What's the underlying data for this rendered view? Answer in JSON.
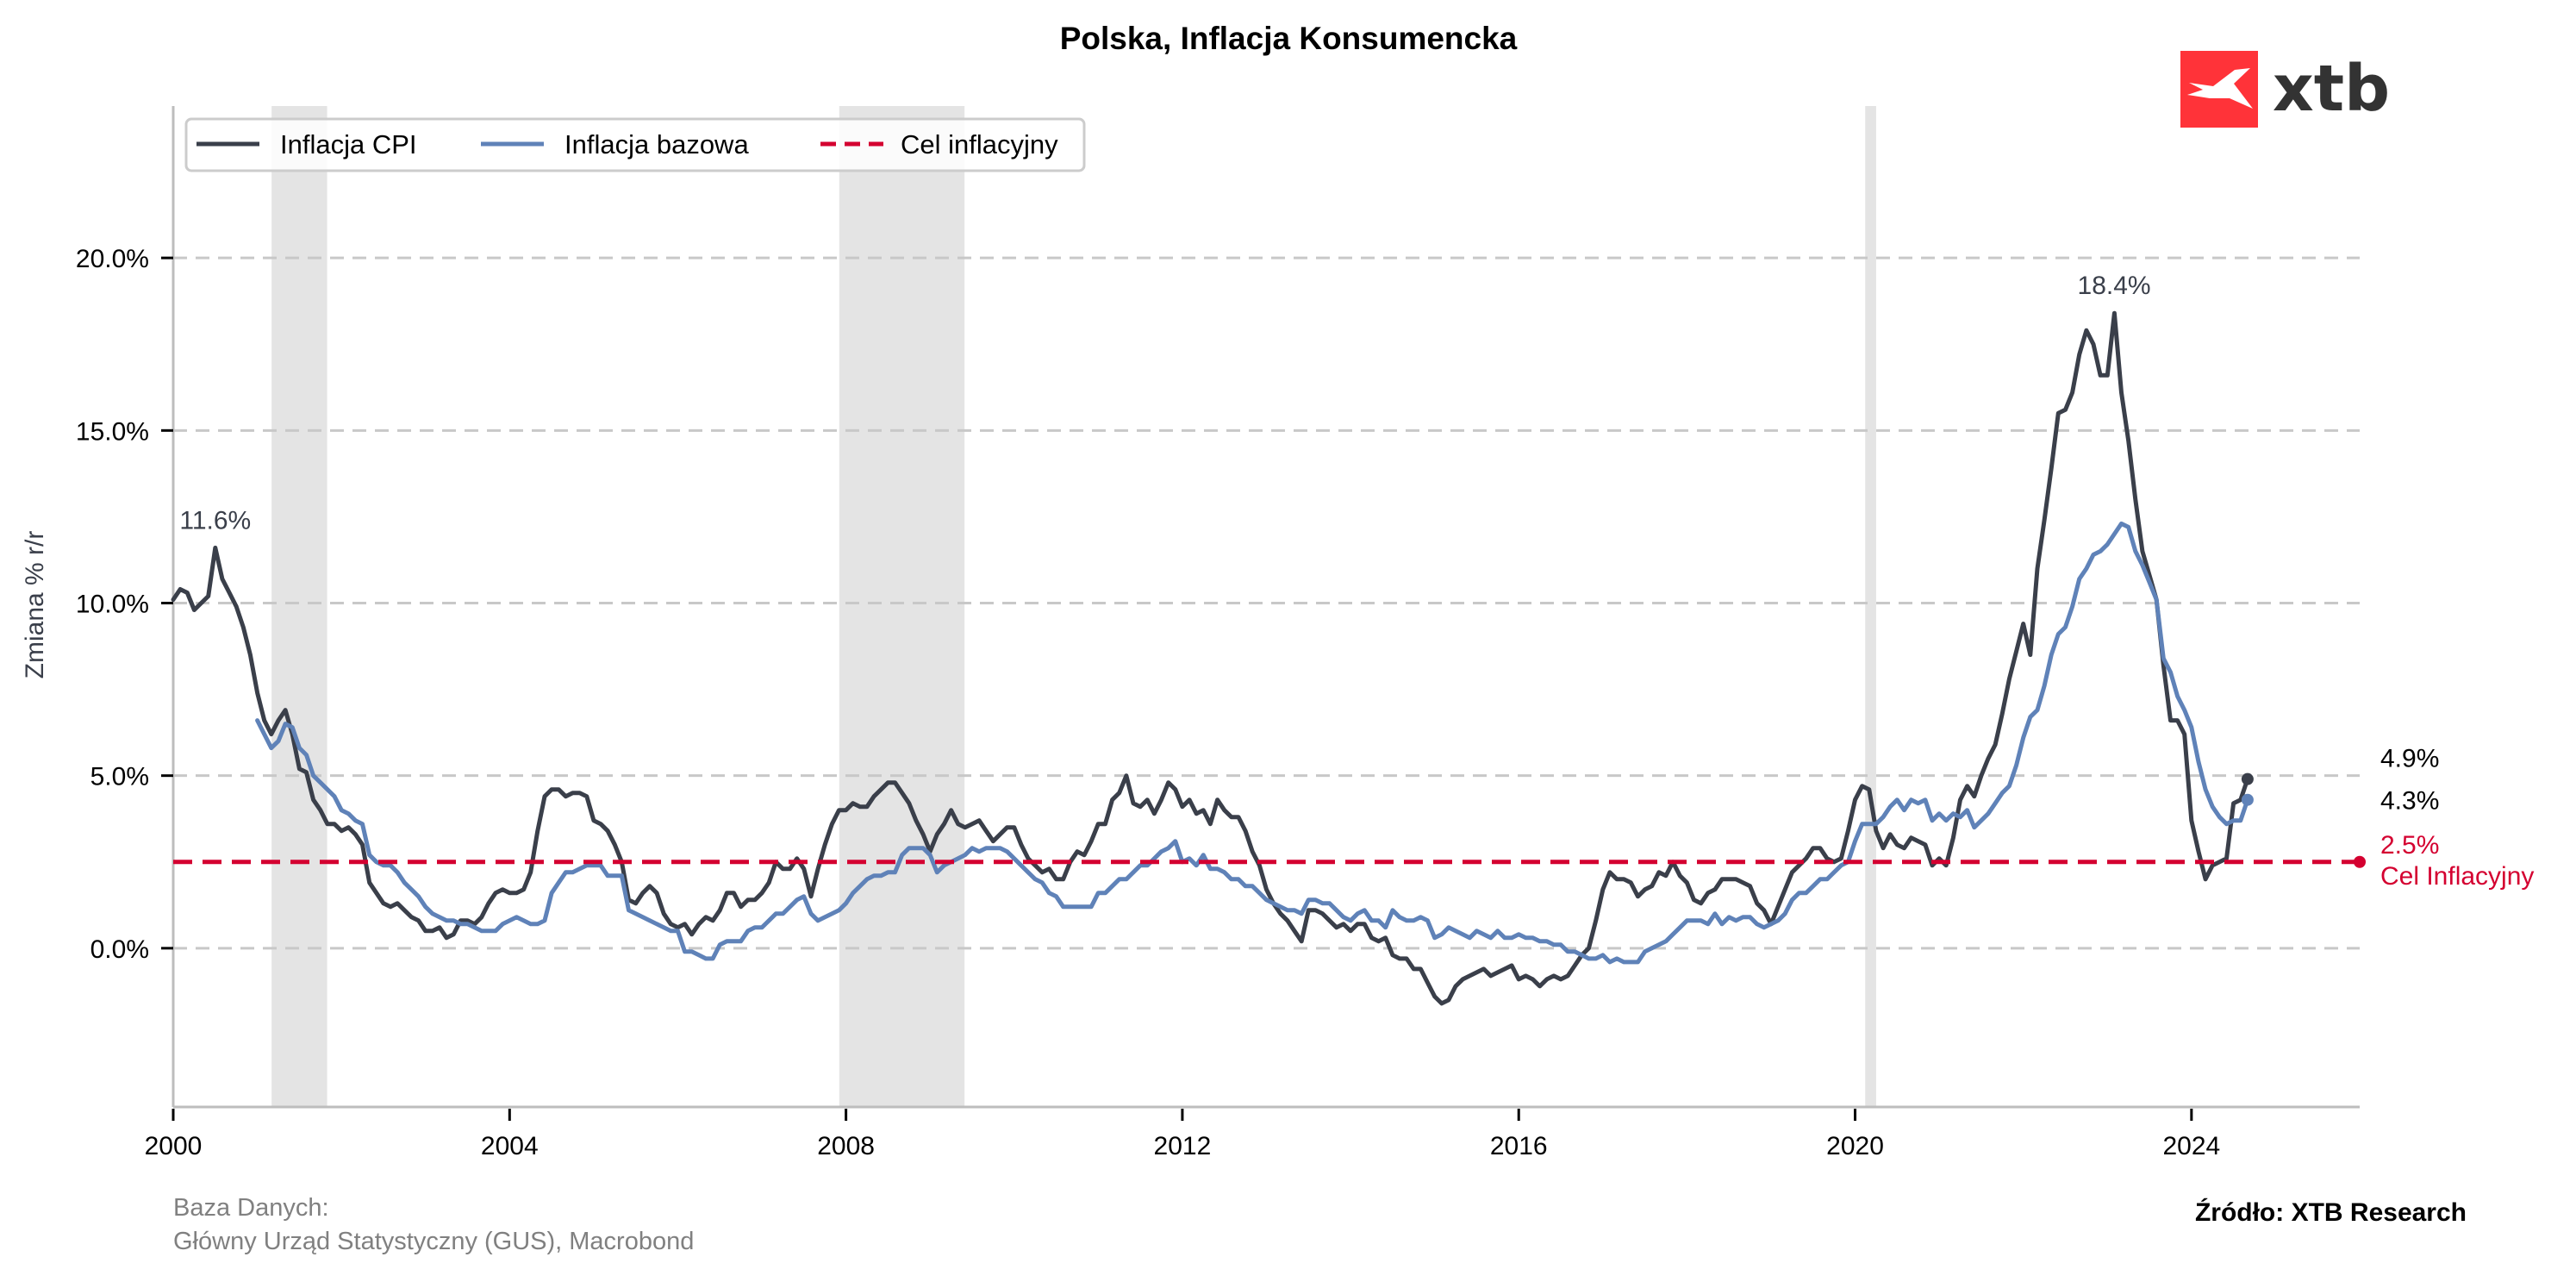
{
  "chart_data": {
    "type": "line",
    "title": "Polska, Inflacja Konsumencka",
    "xlabel": "",
    "ylabel": "Zmiana % r/r",
    "xlim": [
      2000,
      2026
    ],
    "ylim": [
      -4.6,
      24.4
    ],
    "x_ticks": [
      2000,
      2004,
      2008,
      2012,
      2016,
      2020,
      2024
    ],
    "x_tick_labels": [
      "2000",
      "2004",
      "2008",
      "2012",
      "2016",
      "2020",
      "2024"
    ],
    "y_ticks": [
      0,
      5,
      10,
      15,
      20
    ],
    "y_tick_labels": [
      "0.0%",
      "5.0%",
      "10.0%",
      "15.0%",
      "20.0%"
    ],
    "grid": "horizontal dashed",
    "legend_position": "top-left",
    "frequency": "monthly",
    "recession_bands": [
      {
        "start": 2001.17,
        "end": 2001.83
      },
      {
        "start": 2007.92,
        "end": 2009.41
      },
      {
        "start": 2020.12,
        "end": 2020.25
      }
    ],
    "series": [
      {
        "name": "Inflacja CPI",
        "color": "#3a3f4a",
        "start": "2000-01",
        "values": [
          10.1,
          10.4,
          10.3,
          9.8,
          10.0,
          10.2,
          11.6,
          10.7,
          10.3,
          9.9,
          9.3,
          8.5,
          7.4,
          6.6,
          6.2,
          6.6,
          6.9,
          6.2,
          5.2,
          5.1,
          4.3,
          4.0,
          3.6,
          3.6,
          3.4,
          3.5,
          3.3,
          3.0,
          1.9,
          1.6,
          1.3,
          1.2,
          1.3,
          1.1,
          0.9,
          0.8,
          0.5,
          0.5,
          0.6,
          0.3,
          0.4,
          0.8,
          0.8,
          0.7,
          0.9,
          1.3,
          1.6,
          1.7,
          1.6,
          1.6,
          1.7,
          2.2,
          3.4,
          4.4,
          4.6,
          4.6,
          4.4,
          4.5,
          4.5,
          4.4,
          3.7,
          3.6,
          3.4,
          3.0,
          2.5,
          1.4,
          1.3,
          1.6,
          1.8,
          1.6,
          1.0,
          0.7,
          0.6,
          0.7,
          0.4,
          0.7,
          0.9,
          0.8,
          1.1,
          1.6,
          1.6,
          1.2,
          1.4,
          1.4,
          1.6,
          1.9,
          2.5,
          2.3,
          2.3,
          2.6,
          2.3,
          1.5,
          2.3,
          3.0,
          3.6,
          4.0,
          4.0,
          4.2,
          4.1,
          4.1,
          4.4,
          4.6,
          4.8,
          4.8,
          4.5,
          4.2,
          3.7,
          3.3,
          2.8,
          3.3,
          3.6,
          4.0,
          3.6,
          3.5,
          3.6,
          3.7,
          3.4,
          3.1,
          3.3,
          3.5,
          3.5,
          3.0,
          2.6,
          2.4,
          2.2,
          2.3,
          2.0,
          2.0,
          2.5,
          2.8,
          2.7,
          3.1,
          3.6,
          3.6,
          4.3,
          4.5,
          5.0,
          4.2,
          4.1,
          4.3,
          3.9,
          4.3,
          4.8,
          4.6,
          4.1,
          4.3,
          3.9,
          4.0,
          3.6,
          4.3,
          4.0,
          3.8,
          3.8,
          3.4,
          2.8,
          2.4,
          1.7,
          1.3,
          1.0,
          0.8,
          0.5,
          0.2,
          1.1,
          1.1,
          1.0,
          0.8,
          0.6,
          0.7,
          0.5,
          0.7,
          0.7,
          0.3,
          0.2,
          0.3,
          -0.2,
          -0.3,
          -0.3,
          -0.6,
          -0.6,
          -1.0,
          -1.4,
          -1.6,
          -1.5,
          -1.1,
          -0.9,
          -0.8,
          -0.7,
          -0.6,
          -0.8,
          -0.7,
          -0.6,
          -0.5,
          -0.9,
          -0.8,
          -0.9,
          -1.1,
          -0.9,
          -0.8,
          -0.9,
          -0.8,
          -0.5,
          -0.2,
          0.0,
          0.8,
          1.7,
          2.2,
          2.0,
          2.0,
          1.9,
          1.5,
          1.7,
          1.8,
          2.2,
          2.1,
          2.5,
          2.1,
          1.9,
          1.4,
          1.3,
          1.6,
          1.7,
          2.0,
          2.0,
          2.0,
          1.9,
          1.8,
          1.3,
          1.1,
          0.7,
          1.2,
          1.7,
          2.2,
          2.4,
          2.6,
          2.9,
          2.9,
          2.6,
          2.5,
          2.6,
          3.4,
          4.3,
          4.7,
          4.6,
          3.4,
          2.9,
          3.3,
          3.0,
          2.9,
          3.2,
          3.1,
          3.0,
          2.4,
          2.6,
          2.4,
          3.2,
          4.3,
          4.7,
          4.4,
          5.0,
          5.5,
          5.9,
          6.8,
          7.8,
          8.6,
          9.4,
          8.5,
          11.0,
          12.4,
          13.9,
          15.5,
          15.6,
          16.1,
          17.2,
          17.9,
          17.5,
          16.6,
          16.6,
          18.4,
          16.1,
          14.7,
          13.0,
          11.5,
          10.8,
          10.1,
          8.2,
          6.6,
          6.6,
          6.2,
          3.7,
          2.8,
          2.0,
          2.4,
          2.5,
          2.6,
          4.2,
          4.3,
          4.9
        ]
      },
      {
        "name": "Inflacja bazowa",
        "color": "#5f82b8",
        "start": "2001-01",
        "values": [
          6.6,
          6.2,
          5.8,
          6.0,
          6.5,
          6.4,
          5.8,
          5.6,
          5.0,
          4.8,
          4.6,
          4.4,
          4.0,
          3.9,
          3.7,
          3.6,
          2.7,
          2.5,
          2.4,
          2.4,
          2.2,
          1.9,
          1.7,
          1.5,
          1.2,
          1.0,
          0.9,
          0.8,
          0.8,
          0.7,
          0.7,
          0.6,
          0.5,
          0.5,
          0.5,
          0.7,
          0.8,
          0.9,
          0.8,
          0.7,
          0.7,
          0.8,
          1.6,
          1.9,
          2.2,
          2.2,
          2.3,
          2.4,
          2.4,
          2.4,
          2.1,
          2.1,
          2.1,
          1.1,
          1.0,
          0.9,
          0.8,
          0.7,
          0.6,
          0.5,
          0.5,
          -0.1,
          -0.1,
          -0.2,
          -0.3,
          -0.3,
          0.1,
          0.2,
          0.2,
          0.2,
          0.5,
          0.6,
          0.6,
          0.8,
          1.0,
          1.0,
          1.2,
          1.4,
          1.5,
          1.0,
          0.8,
          0.9,
          1.0,
          1.1,
          1.3,
          1.6,
          1.8,
          2.0,
          2.1,
          2.1,
          2.2,
          2.2,
          2.7,
          2.9,
          2.9,
          2.9,
          2.7,
          2.2,
          2.4,
          2.5,
          2.6,
          2.7,
          2.9,
          2.8,
          2.9,
          2.9,
          2.9,
          2.8,
          2.6,
          2.4,
          2.2,
          2.0,
          1.9,
          1.6,
          1.5,
          1.2,
          1.2,
          1.2,
          1.2,
          1.2,
          1.6,
          1.6,
          1.8,
          2.0,
          2.0,
          2.2,
          2.4,
          2.4,
          2.6,
          2.8,
          2.9,
          3.1,
          2.5,
          2.6,
          2.4,
          2.7,
          2.3,
          2.3,
          2.2,
          2.0,
          2.0,
          1.8,
          1.8,
          1.6,
          1.4,
          1.3,
          1.2,
          1.1,
          1.1,
          1.0,
          1.4,
          1.4,
          1.3,
          1.3,
          1.1,
          0.9,
          0.8,
          1.0,
          1.1,
          0.8,
          0.8,
          0.6,
          1.1,
          0.9,
          0.8,
          0.8,
          0.9,
          0.8,
          0.3,
          0.4,
          0.6,
          0.5,
          0.4,
          0.3,
          0.5,
          0.4,
          0.3,
          0.5,
          0.3,
          0.3,
          0.4,
          0.3,
          0.3,
          0.2,
          0.2,
          0.1,
          0.1,
          -0.1,
          -0.1,
          -0.2,
          -0.3,
          -0.3,
          -0.2,
          -0.4,
          -0.3,
          -0.4,
          -0.4,
          -0.4,
          -0.1,
          0.0,
          0.1,
          0.2,
          0.4,
          0.6,
          0.8,
          0.8,
          0.8,
          0.7,
          1.0,
          0.7,
          0.9,
          0.8,
          0.9,
          0.9,
          0.7,
          0.6,
          0.7,
          0.8,
          1.0,
          1.4,
          1.6,
          1.6,
          1.8,
          2.0,
          2.0,
          2.2,
          2.4,
          2.5,
          3.1,
          3.6,
          3.6,
          3.6,
          3.8,
          4.1,
          4.3,
          4.0,
          4.3,
          4.2,
          4.3,
          3.7,
          3.9,
          3.7,
          3.9,
          3.8,
          4.0,
          3.5,
          3.7,
          3.9,
          4.2,
          4.5,
          4.7,
          5.3,
          6.1,
          6.7,
          6.9,
          7.6,
          8.5,
          9.1,
          9.3,
          9.9,
          10.7,
          11.0,
          11.4,
          11.5,
          11.7,
          12.0,
          12.3,
          12.2,
          11.5,
          11.1,
          10.6,
          10.1,
          8.4,
          8.0,
          7.3,
          6.9,
          6.4,
          5.4,
          4.6,
          4.1,
          3.8,
          3.6,
          3.7,
          3.7,
          4.3
        ]
      },
      {
        "name": "Cel inflacyjny",
        "color": "#d40030",
        "style": "dashed",
        "constant": 2.5
      }
    ],
    "annotations": [
      {
        "text": "11.6%",
        "x": 2000.5,
        "y": 11.6
      },
      {
        "text": "18.4%",
        "x": 2023.08,
        "y": 18.4
      }
    ],
    "end_labels": [
      {
        "text": "4.9%",
        "value": 4.9,
        "series": "Inflacja CPI"
      },
      {
        "text": "4.3%",
        "value": 4.3,
        "series": "Inflacja bazowa"
      },
      {
        "text": "2.5%",
        "value": 2.5,
        "series": "Cel inflacyjny",
        "sublabel": "Cel Inflacyjny"
      }
    ]
  },
  "footer": {
    "source_heading": "Baza Danych:",
    "source_detail": "Główny Urząd Statystyczny (GUS), Macrobond",
    "credit": "Źródło: XTB Research"
  },
  "logo": {
    "text": "xtb",
    "icon": "xtb-x-mark-icon",
    "brand_color": "#ff3339"
  }
}
